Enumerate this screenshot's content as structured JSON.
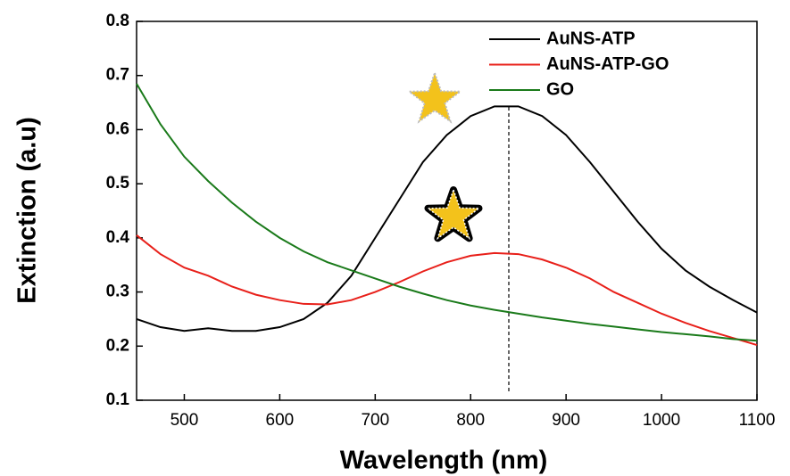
{
  "chart_data": {
    "type": "line",
    "x_label": "Wavelength (nm)",
    "y_label": "Extinction (a.u)",
    "x": [
      450,
      475,
      500,
      525,
      550,
      575,
      600,
      625,
      650,
      675,
      700,
      725,
      750,
      775,
      800,
      825,
      850,
      875,
      900,
      925,
      950,
      975,
      1000,
      1025,
      1050,
      1075,
      1100
    ],
    "series": [
      {
        "name": "AuNS-ATP",
        "color": "#000000",
        "values": [
          0.25,
          0.235,
          0.228,
          0.233,
          0.228,
          0.228,
          0.235,
          0.25,
          0.28,
          0.33,
          0.4,
          0.47,
          0.54,
          0.59,
          0.625,
          0.643,
          0.643,
          0.625,
          0.59,
          0.54,
          0.485,
          0.43,
          0.38,
          0.34,
          0.31,
          0.285,
          0.262
        ]
      },
      {
        "name": "AuNS-ATP-GO",
        "color": "#e8201a",
        "values": [
          0.405,
          0.37,
          0.345,
          0.33,
          0.31,
          0.295,
          0.285,
          0.278,
          0.277,
          0.285,
          0.3,
          0.318,
          0.338,
          0.355,
          0.367,
          0.372,
          0.37,
          0.36,
          0.345,
          0.325,
          0.3,
          0.28,
          0.26,
          0.243,
          0.228,
          0.215,
          0.202
        ]
      },
      {
        "name": "GO",
        "color": "#1a7a1a",
        "values": [
          0.685,
          0.61,
          0.55,
          0.505,
          0.465,
          0.43,
          0.4,
          0.375,
          0.355,
          0.34,
          0.325,
          0.31,
          0.297,
          0.285,
          0.275,
          0.267,
          0.26,
          0.253,
          0.247,
          0.241,
          0.236,
          0.231,
          0.226,
          0.222,
          0.218,
          0.213,
          0.21
        ]
      }
    ],
    "reference_line_x": 840,
    "xlim": [
      450,
      1100
    ],
    "xticks": [
      500,
      600,
      700,
      800,
      900,
      1000,
      1100
    ],
    "ylim": [
      0.1,
      0.8
    ],
    "yticks": [
      0.1,
      0.2,
      0.3,
      0.4,
      0.5,
      0.6,
      0.7,
      0.8
    ],
    "legend": "upper right"
  }
}
